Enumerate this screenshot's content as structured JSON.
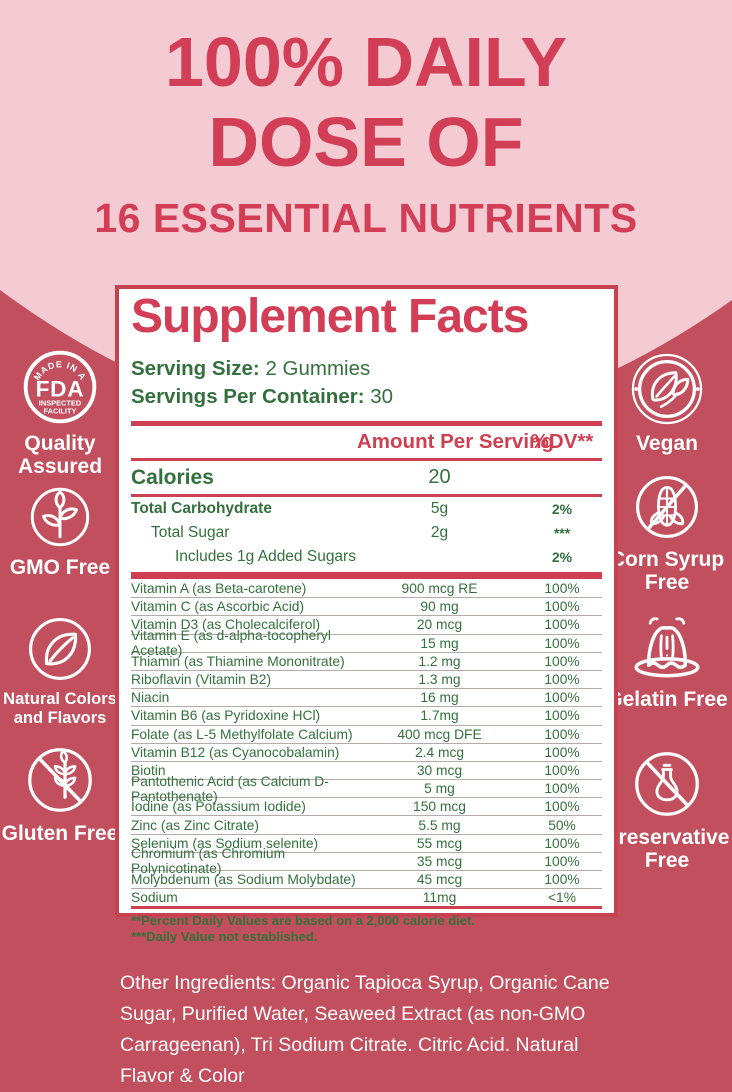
{
  "colors": {
    "background_red": "#c24f5e",
    "pink": "#f4cbd2",
    "accent_red": "#d33e57",
    "green": "#34703e",
    "panel_border": "#c8414f"
  },
  "header": {
    "line1": "100% DAILY",
    "line2": "DOSE OF",
    "line3": "16 ESSENTIAL NUTRIENTS"
  },
  "badges_left": [
    {
      "icon": "fda-badge-icon",
      "label": "Quality Assured",
      "badge_text": {
        "arc": "MADE IN A",
        "main": "FDA",
        "line1": "INSPECTED",
        "line2": "FACILITY"
      }
    },
    {
      "icon": "gmo-free-icon",
      "label": "GMO Free"
    },
    {
      "icon": "natural-leaf-icon",
      "label": "Natural Colors and Flavors"
    },
    {
      "icon": "gluten-free-icon",
      "label": "Gluten Free"
    }
  ],
  "badges_right": [
    {
      "icon": "vegan-icon",
      "label": "Vegan"
    },
    {
      "icon": "corn-syrup-free-icon",
      "label": "Corn Syrup Free"
    },
    {
      "icon": "gelatin-free-icon",
      "label": "Gelatin Free"
    },
    {
      "icon": "preservative-free-icon",
      "label": "Preservative Free"
    }
  ],
  "panel": {
    "title": "Supplement Facts",
    "serving_size_label": "Serving Size:",
    "serving_size_value": " 2 Gummies",
    "servings_per_container_label": "Servings Per Container:",
    "servings_per_container_value": " 30",
    "columns": {
      "amount": "Amount Per Serving",
      "dv": "%DV**"
    },
    "calories": {
      "name": "Calories",
      "amount": "20"
    },
    "macro_rows": [
      {
        "name": "Total Carbohydrate",
        "amount": "5g",
        "dv": "2%",
        "indent": 0,
        "bold": true
      },
      {
        "name": "Total Sugar",
        "amount": "2g",
        "dv": "***",
        "indent": 1,
        "bold": false
      },
      {
        "name": "Includes 1g Added Sugars",
        "amount": "",
        "dv": "2%",
        "indent": 2,
        "bold": false
      }
    ],
    "nutrient_rows": [
      {
        "name": "Vitamin A (as Beta-carotene)",
        "amount": "900 mcg RE",
        "dv": "100%"
      },
      {
        "name": "Vitamin C (as Ascorbic Acid)",
        "amount": "90 mg",
        "dv": "100%"
      },
      {
        "name": "Vitamin D3 (as Cholecalciferol)",
        "amount": "20 mcg",
        "dv": "100%"
      },
      {
        "name": "Vitamin E (as d-alpha-tocopheryl Acetate)",
        "amount": "15 mg",
        "dv": "100%"
      },
      {
        "name": "Thiamin (as Thiamine Mononitrate)",
        "amount": "1.2 mg",
        "dv": "100%"
      },
      {
        "name": "Riboflavin (Vitamin B2)",
        "amount": "1.3 mg",
        "dv": "100%"
      },
      {
        "name": "Niacin",
        "amount": "16 mg",
        "dv": "100%"
      },
      {
        "name": "Vitamin B6 (as Pyridoxine HCl)",
        "amount": "1.7mg",
        "dv": "100%"
      },
      {
        "name": "Folate (as L-5 Methylfolate Calcium)",
        "amount": "400 mcg DFE",
        "dv": "100%"
      },
      {
        "name": "Vitamin B12 (as Cyanocobalamin)",
        "amount": "2.4 mcg",
        "dv": "100%"
      },
      {
        "name": "Biotin",
        "amount": "30 mcg",
        "dv": "100%"
      },
      {
        "name": "Pantothenic Acid (as Calcium D-Pantothenate)",
        "amount": "5 mg",
        "dv": "100%"
      },
      {
        "name": "Iodine (as Potassium Iodide)",
        "amount": "150 mcg",
        "dv": "100%"
      },
      {
        "name": "Zinc (as Zinc Citrate)",
        "amount": "5.5 mg",
        "dv": "50%"
      },
      {
        "name": "Selenium (as Sodium selenite)",
        "amount": "55 mcg",
        "dv": "100%"
      },
      {
        "name": "Chromium (as Chromium Polynicotinate)",
        "amount": "35 mcg",
        "dv": "100%"
      },
      {
        "name": "Molybdenum (as Sodium Molybdate)",
        "amount": "45 mcg",
        "dv": "100%"
      },
      {
        "name": "Sodium",
        "amount": "11mg",
        "dv": "<1%"
      }
    ],
    "footnotes": [
      "**Percent Daily Values are based on a 2,000 calorie diet.",
      "***Daily Value not established."
    ]
  },
  "other_ingredients": "Other Ingredients: Organic Tapioca Syrup, Organic Cane Sugar, Purified Water, Seaweed Extract (as non-GMO Carrageenan), Tri Sodium Citrate. Citric Acid. Natural Flavor & Color"
}
